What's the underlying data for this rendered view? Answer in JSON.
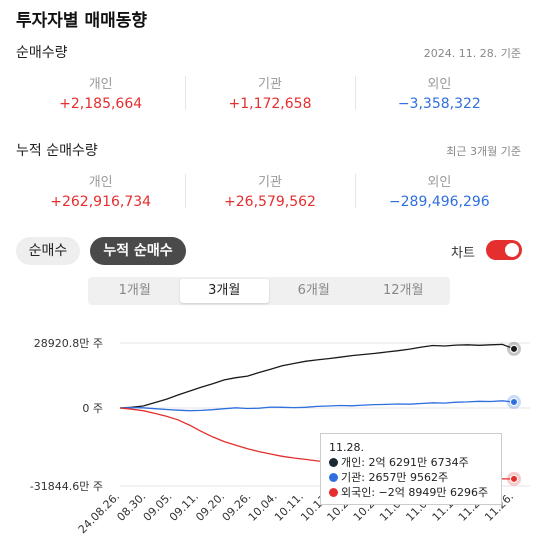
{
  "page": {
    "title": "투자자별 매매동향"
  },
  "net": {
    "title": "순매수량",
    "note": "2024. 11. 28. 기준",
    "stats": [
      {
        "label": "개인",
        "value": "+2,185,664",
        "trend": "up"
      },
      {
        "label": "기관",
        "value": "+1,172,658",
        "trend": "up"
      },
      {
        "label": "외인",
        "value": "−3,358,322",
        "trend": "down"
      }
    ]
  },
  "cum": {
    "title": "누적 순매수량",
    "note": "최근 3개월 기준",
    "stats": [
      {
        "label": "개인",
        "value": "+262,916,734",
        "trend": "up"
      },
      {
        "label": "기관",
        "value": "+26,579,562",
        "trend": "up"
      },
      {
        "label": "외인",
        "value": "−289,496,296",
        "trend": "down"
      }
    ]
  },
  "controls": {
    "pills": [
      "순매수",
      "누적 순매수"
    ],
    "active_pill": 1,
    "chart_toggle_label": "차트",
    "chart_toggle_on": true,
    "periods": [
      "1개월",
      "3개월",
      "6개월",
      "12개월"
    ],
    "active_period": 1
  },
  "colors": {
    "up": "#e52e2e",
    "down": "#2f6fde",
    "retail": "#1a1a1a",
    "institution": "#2f6fde",
    "foreign": "#e52e2e"
  },
  "tooltip": {
    "date": "11.28.",
    "rows": [
      {
        "color": "#1a2a33",
        "text": "개인: 2억 6291만 6734주"
      },
      {
        "color": "#2f6fde",
        "text": "기관: 2657만 9562주"
      },
      {
        "color": "#e52e2e",
        "text": "외국인: −2억 8949만 6296주"
      }
    ]
  },
  "chart_data": {
    "type": "line",
    "y_ticks": [
      {
        "label": "28920.8만 주",
        "value": 28920.8
      },
      {
        "label": "0 주",
        "value": 0
      },
      {
        "label": "-31844.6만 주",
        "value": -31844.6
      }
    ],
    "ylim": [
      -31844.6,
      28920.8
    ],
    "x_tick_labels": [
      "24.08.26.",
      "08.30.",
      "09.05.",
      "09.11.",
      "09.20.",
      "09.26.",
      "10.04.",
      "10.11.",
      "10.17.",
      "10.23.",
      "10.29.",
      "11.04.",
      "11.08.",
      "11.14.",
      "11.20.",
      "11.26."
    ],
    "x_ticks_shown": [
      "24.08.26.",
      "08.30.",
      "09.05.",
      "09.11.",
      "09.20.",
      "09.26.",
      "10.04.",
      "10.11.",
      "10.17.",
      "10.23.",
      "10.29.",
      "11.04.",
      "11.08.",
      "11.14.",
      "11.20.",
      "11.26."
    ],
    "series": [
      {
        "name": "개인",
        "color": "#1a1a1a",
        "values": [
          0,
          300,
          900,
          2400,
          3900,
          5800,
          7500,
          9200,
          10800,
          12500,
          13500,
          14200,
          15800,
          17200,
          18800,
          19800,
          20800,
          21400,
          22000,
          22600,
          23300,
          23800,
          24300,
          24900,
          25500,
          26200,
          27100,
          27800,
          27600,
          28000,
          28100,
          27900,
          28100,
          28300,
          26292
        ]
      },
      {
        "name": "기관",
        "color": "#2f6fde",
        "values": [
          0,
          200,
          100,
          -300,
          -600,
          -900,
          -1100,
          -1000,
          -700,
          -300,
          100,
          -200,
          -100,
          400,
          300,
          200,
          300,
          700,
          900,
          1100,
          1000,
          1300,
          1500,
          1600,
          1800,
          1700,
          2000,
          2300,
          2200,
          2600,
          2700,
          3000,
          2900,
          3200,
          2658
        ]
      },
      {
        "name": "외국인",
        "color": "#e52e2e",
        "values": [
          0,
          -500,
          -1100,
          -2200,
          -3400,
          -4800,
          -7000,
          -9500,
          -11800,
          -13700,
          -15200,
          -16600,
          -17800,
          -18800,
          -19700,
          -20400,
          -21000,
          -21600,
          -22100,
          -22500,
          -22900,
          -23200,
          -23500,
          -23800,
          -24200,
          -24600,
          -25100,
          -25700,
          -26300,
          -26900,
          -27500,
          -28100,
          -28600,
          -28900,
          -28950
        ]
      }
    ]
  }
}
